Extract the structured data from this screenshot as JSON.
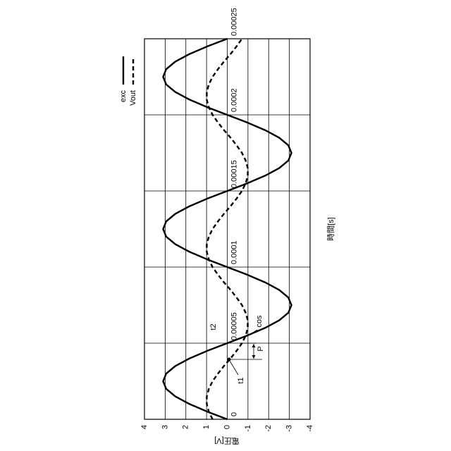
{
  "chart_data": {
    "type": "line",
    "x_label": "時間[s]",
    "y_label": "電圧[V]",
    "x": [
      0,
      5e-06,
      1e-05,
      1.5e-05,
      2e-05,
      2.5e-05,
      3e-05,
      3.5e-05,
      4e-05,
      4.5e-05,
      5e-05,
      5.5e-05,
      6e-05,
      6.5e-05,
      7e-05,
      7.5e-05,
      8e-05,
      8.5e-05,
      9e-05,
      9.5e-05,
      0.0001,
      0.000105,
      0.00011,
      0.000115,
      0.00012,
      0.000125,
      0.00013,
      0.000135,
      0.00014,
      0.000145,
      0.00015,
      0.000155,
      0.00016,
      0.000165,
      0.00017,
      0.000175,
      0.00018,
      0.000185,
      0.00019,
      0.000195,
      0.0002,
      0.000205,
      0.00021,
      0.000215,
      0.00022,
      0.000225,
      0.00023,
      0.000235,
      0.00024,
      0.000245,
      0.00025
    ],
    "series": [
      {
        "name": "exc",
        "color": "#000000",
        "dash": false,
        "values": [
          0,
          0.96,
          1.82,
          2.51,
          2.95,
          3.1,
          2.95,
          2.51,
          1.82,
          0.96,
          0,
          -0.96,
          -1.82,
          -2.51,
          -2.95,
          -3.1,
          -2.95,
          -2.51,
          -1.82,
          -0.96,
          0,
          0.96,
          1.82,
          2.51,
          2.95,
          3.1,
          2.95,
          2.51,
          1.82,
          0.96,
          0,
          -0.96,
          -1.82,
          -2.51,
          -2.95,
          -3.1,
          -2.95,
          -2.51,
          -1.82,
          -0.96,
          0,
          0.96,
          1.82,
          2.51,
          2.95,
          3.1,
          2.95,
          2.51,
          1.82,
          0.96,
          0
        ]
      },
      {
        "name": "Vout",
        "color": "#000000",
        "dash": true,
        "values": [
          0.71,
          0.89,
          0.99,
          0.99,
          0.89,
          0.71,
          0.45,
          0.16,
          -0.16,
          -0.45,
          -0.71,
          -0.89,
          -0.99,
          -0.99,
          -0.89,
          -0.71,
          -0.45,
          -0.16,
          0.16,
          0.45,
          0.71,
          0.89,
          0.99,
          0.99,
          0.89,
          0.71,
          0.45,
          0.16,
          -0.16,
          -0.45,
          -0.71,
          -0.89,
          -0.99,
          -0.99,
          -0.89,
          -0.71,
          -0.45,
          -0.16,
          0.16,
          0.45,
          0.71,
          0.89,
          0.99,
          0.99,
          0.89,
          0.71,
          0.45,
          0.16,
          -0.16,
          -0.45,
          -0.71
        ]
      }
    ],
    "xlim": [
      0,
      0.00025
    ],
    "xticks": [
      0,
      5e-05,
      0.0001,
      0.00015,
      0.0002,
      0.00025
    ],
    "ylim": [
      -4,
      4
    ],
    "yticks": [
      -4,
      -3,
      -2,
      -1,
      0,
      1,
      2,
      3,
      4
    ],
    "grid": true,
    "annotations": [
      "t1",
      "t2",
      "P",
      "cos"
    ]
  }
}
